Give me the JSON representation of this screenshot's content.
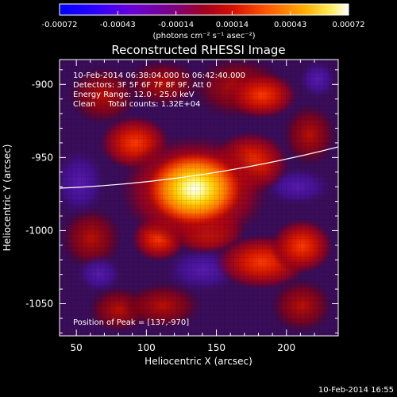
{
  "colorbar": {
    "ticks": [
      "-0.00072",
      "-0.00043",
      "-0.00014",
      "0.00014",
      "0.00043",
      "0.00072"
    ],
    "unit_label": "(photons cm⁻² s⁻¹ asec⁻²)"
  },
  "image": {
    "title": "Reconstructed RHESSI Image",
    "info_lines": [
      "10-Feb-2014 06:38:04.000 to 06:42:40.000",
      "Detectors: 3F 5F 6F 7F 8F 9F, Att 0",
      "Energy Range: 12.0 - 25.0 keV",
      "Clean     Total counts: 1.32E+04"
    ],
    "peak_label": "Position of Peak = [137,-970]",
    "x_axis": {
      "label": "Heliocentric X (arcsec)",
      "ticks": [
        50,
        100,
        150,
        200
      ]
    },
    "y_axis": {
      "label": "Heliocentric Y (arcsec)",
      "ticks": [
        -900,
        -950,
        -1000,
        -1050
      ]
    }
  },
  "footer": {
    "timestamp": "10-Feb-2014 16:55"
  }
}
